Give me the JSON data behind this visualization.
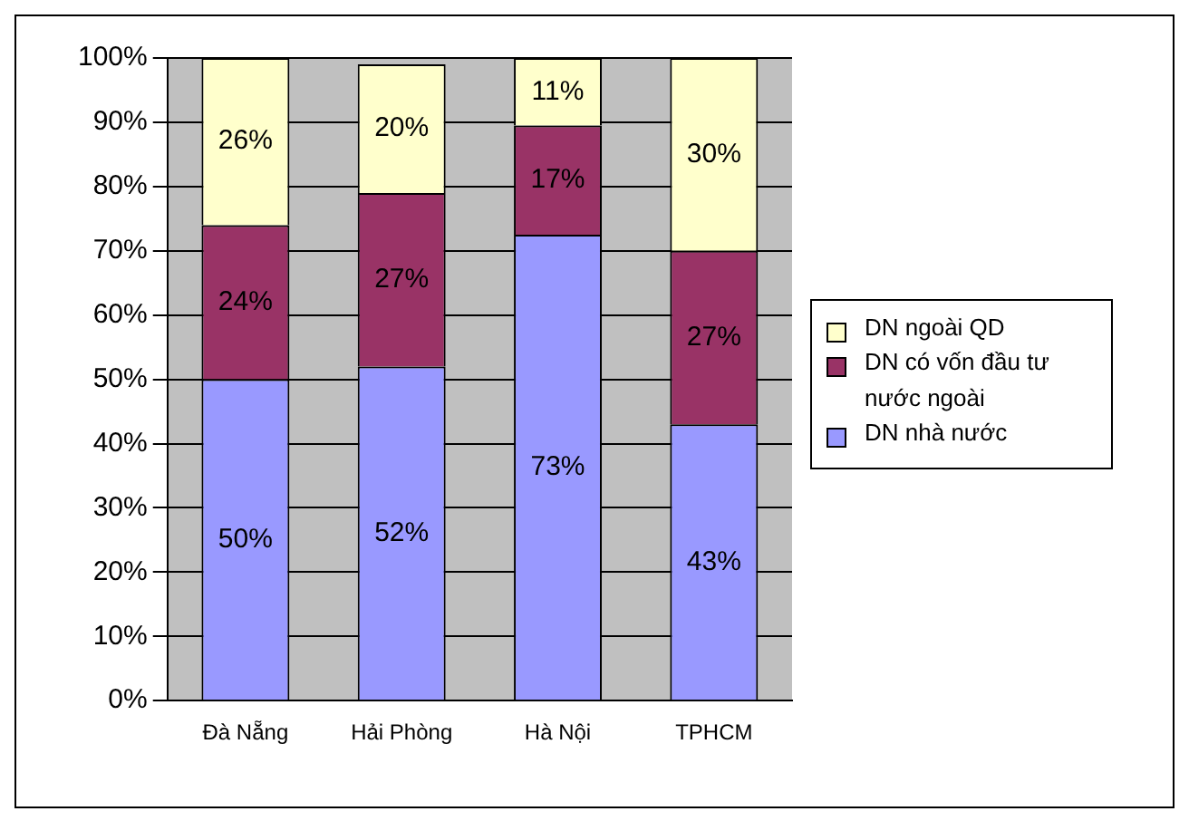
{
  "chart_data": {
    "type": "bar",
    "stacked": true,
    "categories": [
      "Đà Nẵng",
      "Hải Phòng",
      "Hà Nội",
      "TPHCM"
    ],
    "series": [
      {
        "name": "DN nhà nước",
        "color": "#9999ff",
        "values": [
          50,
          52,
          72.5,
          43
        ],
        "value_labels": [
          "50%",
          "52%",
          "73%",
          "43%"
        ]
      },
      {
        "name": "DN có vốn đầu tư nước ngoài",
        "color": "#993366",
        "values": [
          24,
          27,
          17,
          27
        ],
        "value_labels": [
          "24%",
          "27%",
          "17%",
          "27%"
        ]
      },
      {
        "name": "DN ngoài QD",
        "color": "#ffffcc",
        "values": [
          26,
          20,
          10.5,
          30
        ],
        "value_labels": [
          "26%",
          "20%",
          "11%",
          "30%"
        ]
      }
    ],
    "ylim": [
      0,
      100
    ],
    "yticks": [
      {
        "value": 0,
        "label": "0%"
      },
      {
        "value": 10,
        "label": "10%"
      },
      {
        "value": 20,
        "label": "20%"
      },
      {
        "value": 30,
        "label": "30%"
      },
      {
        "value": 40,
        "label": "40%"
      },
      {
        "value": 50,
        "label": "50%"
      },
      {
        "value": 60,
        "label": "60%"
      },
      {
        "value": 70,
        "label": "70%"
      },
      {
        "value": 80,
        "label": "80%"
      },
      {
        "value": 90,
        "label": "90%"
      },
      {
        "value": 100,
        "label": "100%"
      }
    ],
    "grid": "y",
    "legend": "right"
  }
}
